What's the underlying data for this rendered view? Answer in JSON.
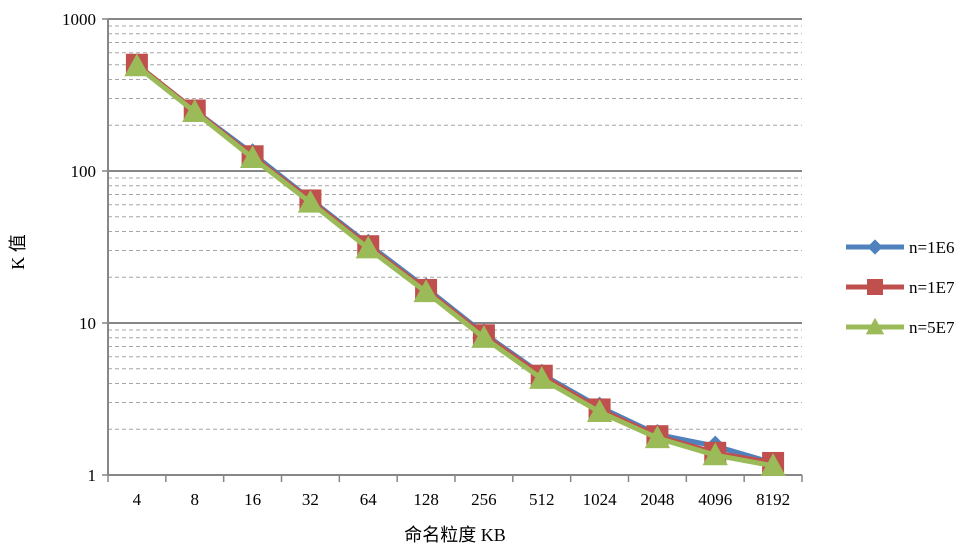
{
  "chart_data": {
    "type": "line",
    "title": "",
    "xlabel": "命名粒度 KB",
    "ylabel": "K 值",
    "categories": [
      "4",
      "8",
      "16",
      "32",
      "64",
      "128",
      "256",
      "512",
      "1024",
      "2048",
      "4096",
      "8192"
    ],
    "y_scale": "log10",
    "ylim": [
      1,
      1000
    ],
    "y_ticks": [
      "1",
      "10",
      "100",
      "1000"
    ],
    "grid": {
      "major": true,
      "minor": true,
      "minor_style": "dashed"
    },
    "legend_position": "right",
    "series": [
      {
        "name": "n=1E6",
        "marker": "diamond",
        "color": "#4f81bd",
        "values": [
          500,
          250,
          130,
          65,
          33,
          17,
          8.5,
          4.6,
          2.8,
          1.85,
          1.55,
          1.2
        ]
      },
      {
        "name": "n=1E7",
        "marker": "square",
        "color": "#c0504d",
        "values": [
          500,
          250,
          125,
          64,
          32,
          16.5,
          8.3,
          4.5,
          2.7,
          1.8,
          1.4,
          1.2
        ]
      },
      {
        "name": "n=5E7",
        "marker": "triangle",
        "color": "#9bbb59",
        "values": [
          490,
          245,
          122,
          62,
          31,
          16,
          8.0,
          4.3,
          2.6,
          1.75,
          1.35,
          1.15
        ]
      }
    ]
  }
}
